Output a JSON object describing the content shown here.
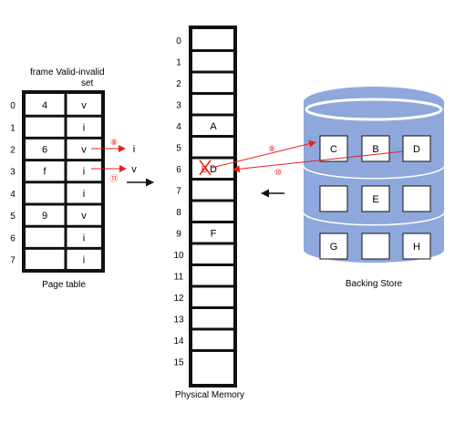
{
  "page_table": {
    "header_line1": "frame Valid-invalid",
    "header_line2": "set",
    "caption": "Page table",
    "rows": [
      {
        "index": "0",
        "frame": "4",
        "bit": "v"
      },
      {
        "index": "1",
        "frame": "",
        "bit": "i"
      },
      {
        "index": "2",
        "frame": "6",
        "bit": "v"
      },
      {
        "index": "3",
        "frame": "f",
        "bit": "i"
      },
      {
        "index": "4",
        "frame": "",
        "bit": "i"
      },
      {
        "index": "5",
        "frame": "9",
        "bit": "v"
      },
      {
        "index": "6",
        "frame": "",
        "bit": "i"
      },
      {
        "index": "7",
        "frame": "",
        "bit": "i"
      }
    ],
    "change_row2": {
      "step": "⑧",
      "new_bit": "i"
    },
    "change_row3": {
      "step": "⑪",
      "new_bit": "v"
    }
  },
  "physical_memory": {
    "caption": "Physical Memory",
    "labels": [
      "0",
      "1",
      "2",
      "3",
      "4",
      "5",
      "6",
      "7",
      "8",
      "9",
      "10",
      "11",
      "12",
      "13",
      "14",
      "15"
    ],
    "frames": [
      "",
      "",
      "",
      "",
      "A",
      "",
      "D",
      "",
      "",
      "F",
      "",
      "",
      "",
      "",
      "",
      ""
    ],
    "evicted_letter": "B"
  },
  "backing_store": {
    "caption": "Backing Store",
    "rows": [
      [
        "C",
        "B",
        "D"
      ],
      [
        "",
        "E",
        ""
      ],
      [
        "G",
        "",
        "H"
      ]
    ],
    "swap_out_step": "⑨",
    "swap_in_step": "⑩"
  },
  "colors": {
    "accent": "#e8211c",
    "disk_fill": "#8fa8dc",
    "disk_dark": "#7d97cf",
    "line": "#111111"
  }
}
